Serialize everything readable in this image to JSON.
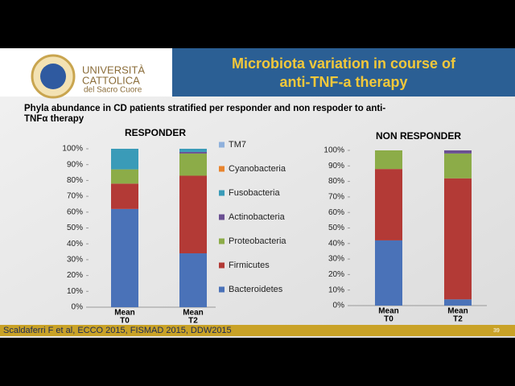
{
  "slide": {
    "logo": [
      "UNIVERSITÀ",
      "CATTOLICA",
      "del Sacro Cuore"
    ],
    "title": [
      "Microbiota variation in course of",
      "anti-TNF-a therapy"
    ],
    "subtitle": [
      "Phyla abundance in CD patients stratified per responder and non respoder to anti-",
      "TNFα therapy"
    ],
    "footer": "Scaldaferri F et al, ECCO 2015, FISMAD 2015, DDW2015",
    "page": "39"
  },
  "chart_data": [
    {
      "type": "stacked-bar",
      "title": "RESPONDER",
      "categories": [
        [
          "Mean",
          "T0"
        ],
        [
          "Mean",
          "T2"
        ]
      ],
      "series": [
        {
          "name": "Bacteroidetes",
          "color": "#4a72b8",
          "values": [
            62,
            34
          ]
        },
        {
          "name": "Firmicutes",
          "color": "#b33a36",
          "values": [
            16,
            49
          ]
        },
        {
          "name": "Proteobacteria",
          "color": "#8cac48",
          "values": [
            9,
            14
          ]
        },
        {
          "name": "Actinobacteria",
          "color": "#6a4f92",
          "values": [
            0,
            1
          ]
        },
        {
          "name": "Fusobacteria",
          "color": "#3a9bb8",
          "values": [
            13,
            2
          ]
        },
        {
          "name": "Cyanobacteria",
          "color": "#e8842e",
          "values": [
            0,
            0
          ]
        },
        {
          "name": "TM7",
          "color": "#8fb1dc",
          "values": [
            0,
            0
          ]
        }
      ],
      "ylim": [
        0,
        100
      ],
      "yticks": [
        {
          "value": 0,
          "label": "0%"
        },
        {
          "value": 10,
          "label": "10%"
        },
        {
          "value": 20,
          "label": "20%"
        },
        {
          "value": 30,
          "label": "30%"
        },
        {
          "value": 40,
          "label": "40%"
        },
        {
          "value": 50,
          "label": "50%"
        },
        {
          "value": 60,
          "label": "60%"
        },
        {
          "value": 70,
          "label": "70%"
        },
        {
          "value": 80,
          "label": "80%"
        },
        {
          "value": 90,
          "label": "90%"
        },
        {
          "value": 100,
          "label": "100%"
        }
      ],
      "legend": "right"
    },
    {
      "type": "stacked-bar",
      "title": "NON RESPONDER",
      "categories": [
        [
          "Mean",
          "T0"
        ],
        [
          "Mean",
          "T2"
        ]
      ],
      "series": [
        {
          "color": "#4a72b8",
          "values": [
            42,
            4
          ]
        },
        {
          "color": "#b33a36",
          "values": [
            46,
            78
          ]
        },
        {
          "color": "#8cac48",
          "values": [
            12,
            16
          ]
        },
        {
          "color": "#6a4f92",
          "values": [
            0,
            2
          ]
        },
        {
          "color": "#3a9bb8",
          "values": [
            0,
            0
          ]
        },
        {
          "color": "#e8842e",
          "values": [
            0,
            0
          ]
        },
        {
          "color": "#8fb1dc",
          "values": [
            0,
            0
          ]
        }
      ],
      "ylim": [
        0,
        100
      ],
      "yticks": [
        {
          "value": 0,
          "label": "0%"
        },
        {
          "value": 10,
          "label": "10%"
        },
        {
          "value": 20,
          "label": "20%"
        },
        {
          "value": 30,
          "label": "30%"
        },
        {
          "value": 40,
          "label": "40%"
        },
        {
          "value": 50,
          "label": "50%"
        },
        {
          "value": 60,
          "label": "60%"
        },
        {
          "value": 70,
          "label": "70%"
        },
        {
          "value": 80,
          "label": "80%"
        },
        {
          "value": 90,
          "label": "90%"
        },
        {
          "value": 100,
          "label": "100%"
        }
      ]
    }
  ]
}
